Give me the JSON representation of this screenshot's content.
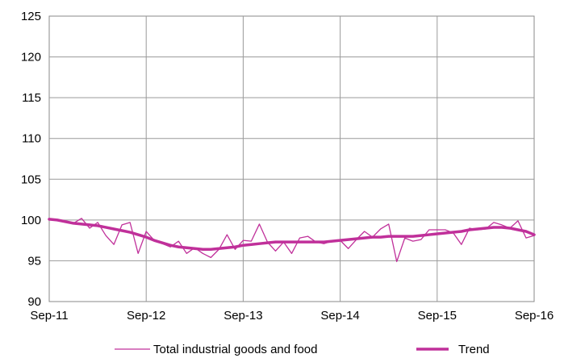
{
  "chart_data": {
    "type": "line",
    "x_ticks": [
      "Sep-11",
      "Sep-12",
      "Sep-13",
      "Sep-14",
      "Sep-15",
      "Sep-16"
    ],
    "y_ticks": [
      90,
      95,
      100,
      105,
      110,
      115,
      120,
      125
    ],
    "ylim": [
      90,
      125
    ],
    "xlim": [
      0,
      60
    ],
    "grid": true,
    "legend_position": "bottom",
    "x": [
      0,
      1,
      2,
      3,
      4,
      5,
      6,
      7,
      8,
      9,
      10,
      11,
      12,
      13,
      14,
      15,
      16,
      17,
      18,
      19,
      20,
      21,
      22,
      23,
      24,
      25,
      26,
      27,
      28,
      29,
      30,
      31,
      32,
      33,
      34,
      35,
      36,
      37,
      38,
      39,
      40,
      41,
      42,
      43,
      44,
      45,
      46,
      47,
      48,
      49,
      50,
      51,
      52,
      53,
      54,
      55,
      56,
      57,
      58,
      59,
      60
    ],
    "series": [
      {
        "name": "Total industrial goods and food",
        "color": "#c0309a",
        "values": [
          100.1,
          100.0,
          99.8,
          99.6,
          100.2,
          99.0,
          99.7,
          98.1,
          97.0,
          99.4,
          99.7,
          95.9,
          98.6,
          97.5,
          97.1,
          96.7,
          97.4,
          95.9,
          96.6,
          95.9,
          95.4,
          96.4,
          98.2,
          96.4,
          97.5,
          97.4,
          99.5,
          97.3,
          96.2,
          97.3,
          95.9,
          97.8,
          98.0,
          97.3,
          97.1,
          97.4,
          97.5,
          96.5,
          97.6,
          98.6,
          97.9,
          98.9,
          99.5,
          94.9,
          97.8,
          97.4,
          97.6,
          98.8,
          98.8,
          98.8,
          98.4,
          97.0,
          99.0,
          98.8,
          98.9,
          99.7,
          99.4,
          99.0,
          99.9,
          97.8,
          98.1
        ]
      },
      {
        "name": "Trend",
        "color": "#c0309a",
        "values": [
          100.1,
          100.0,
          99.8,
          99.6,
          99.5,
          99.4,
          99.3,
          99.1,
          98.9,
          98.7,
          98.5,
          98.2,
          97.9,
          97.5,
          97.2,
          96.9,
          96.7,
          96.6,
          96.5,
          96.4,
          96.4,
          96.5,
          96.6,
          96.7,
          96.9,
          97.0,
          97.1,
          97.2,
          97.3,
          97.3,
          97.3,
          97.3,
          97.3,
          97.3,
          97.3,
          97.4,
          97.5,
          97.6,
          97.7,
          97.8,
          97.9,
          97.9,
          98.0,
          98.0,
          98.0,
          98.0,
          98.1,
          98.2,
          98.3,
          98.4,
          98.5,
          98.6,
          98.8,
          98.9,
          99.0,
          99.1,
          99.1,
          99.0,
          98.8,
          98.6,
          98.2
        ]
      }
    ]
  }
}
